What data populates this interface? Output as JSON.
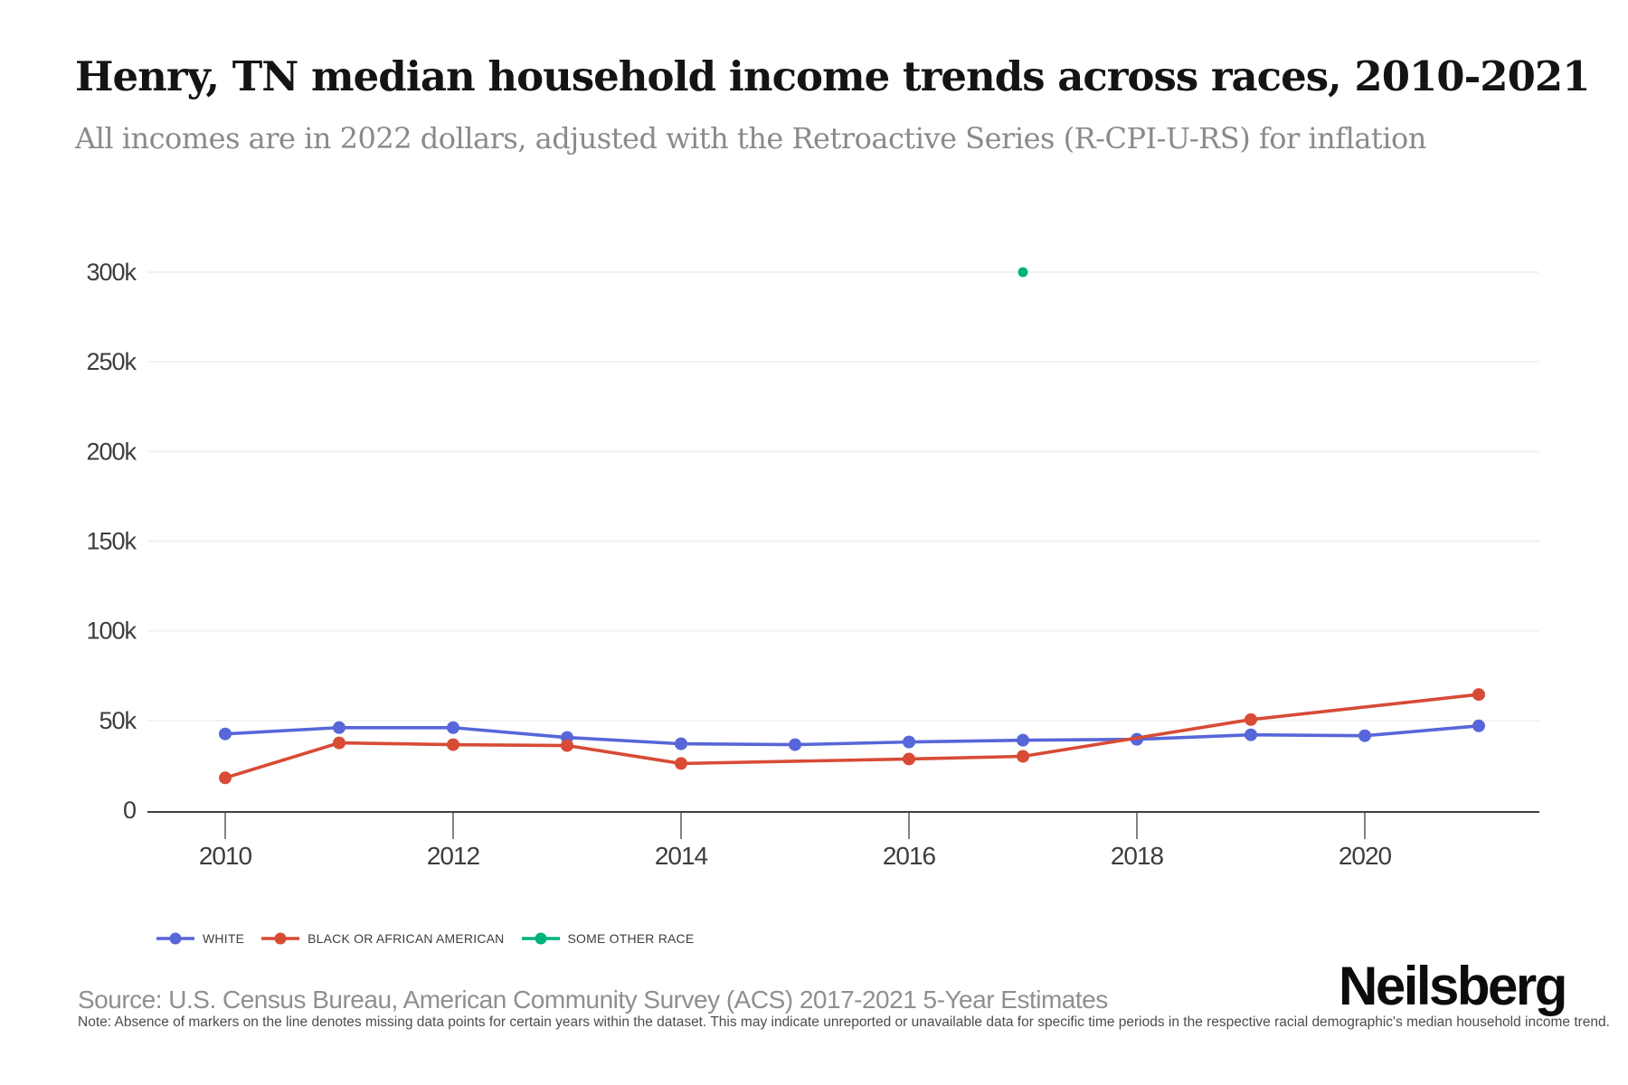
{
  "header": {
    "title": "Henry, TN median household income trends across races, 2010-2021",
    "subtitle": "All incomes are in 2022 dollars, adjusted with the Retroactive Series (R-CPI-U-RS) for inflation"
  },
  "chart_data": {
    "type": "line",
    "x": [
      2010,
      2011,
      2012,
      2013,
      2014,
      2015,
      2016,
      2017,
      2018,
      2019,
      2020,
      2021
    ],
    "x_tick_years": [
      2010,
      2012,
      2014,
      2016,
      2018,
      2020
    ],
    "y_ticks": [
      {
        "value": 0,
        "label": "0"
      },
      {
        "value": 50000,
        "label": "50k"
      },
      {
        "value": 100000,
        "label": "100k"
      },
      {
        "value": 150000,
        "label": "150k"
      },
      {
        "value": 200000,
        "label": "200k"
      },
      {
        "value": 250000,
        "label": "250k"
      },
      {
        "value": 300000,
        "label": "300k"
      }
    ],
    "ylim": [
      0,
      310000
    ],
    "grid": "horizontal",
    "legend_position": "bottom-left",
    "missing_data_note": "absent markers = missing data points",
    "series": [
      {
        "name": "WHITE",
        "color": "#5766d9",
        "values": [
          42500,
          46000,
          46000,
          40500,
          37000,
          36500,
          38000,
          39000,
          39500,
          42000,
          41500,
          47000
        ]
      },
      {
        "name": "BLACK OR AFRICAN AMERICAN",
        "color": "#d84b35",
        "values": [
          18000,
          37500,
          36500,
          36000,
          26000,
          null,
          28500,
          30000,
          null,
          50500,
          null,
          64500
        ]
      },
      {
        "name": "SOME OTHER RACE",
        "color": "#00b27d",
        "values": [
          null,
          null,
          null,
          null,
          null,
          null,
          null,
          300000,
          null,
          null,
          null,
          null
        ]
      }
    ]
  },
  "colors": {
    "grid": "#f2f2f2",
    "axis": "#3f3f3f",
    "tick_label": "#3d3d3d"
  },
  "footer": {
    "source": "Source: U.S. Census Bureau, American Community Survey (ACS) 2017-2021 5-Year Estimates",
    "note": "Note: Absence of markers on the line denotes missing data points for certain years within the dataset. This may indicate unreported or unavailable data for specific time periods in the respective racial demographic's median household income trend.",
    "brand": "Neilsberg"
  }
}
